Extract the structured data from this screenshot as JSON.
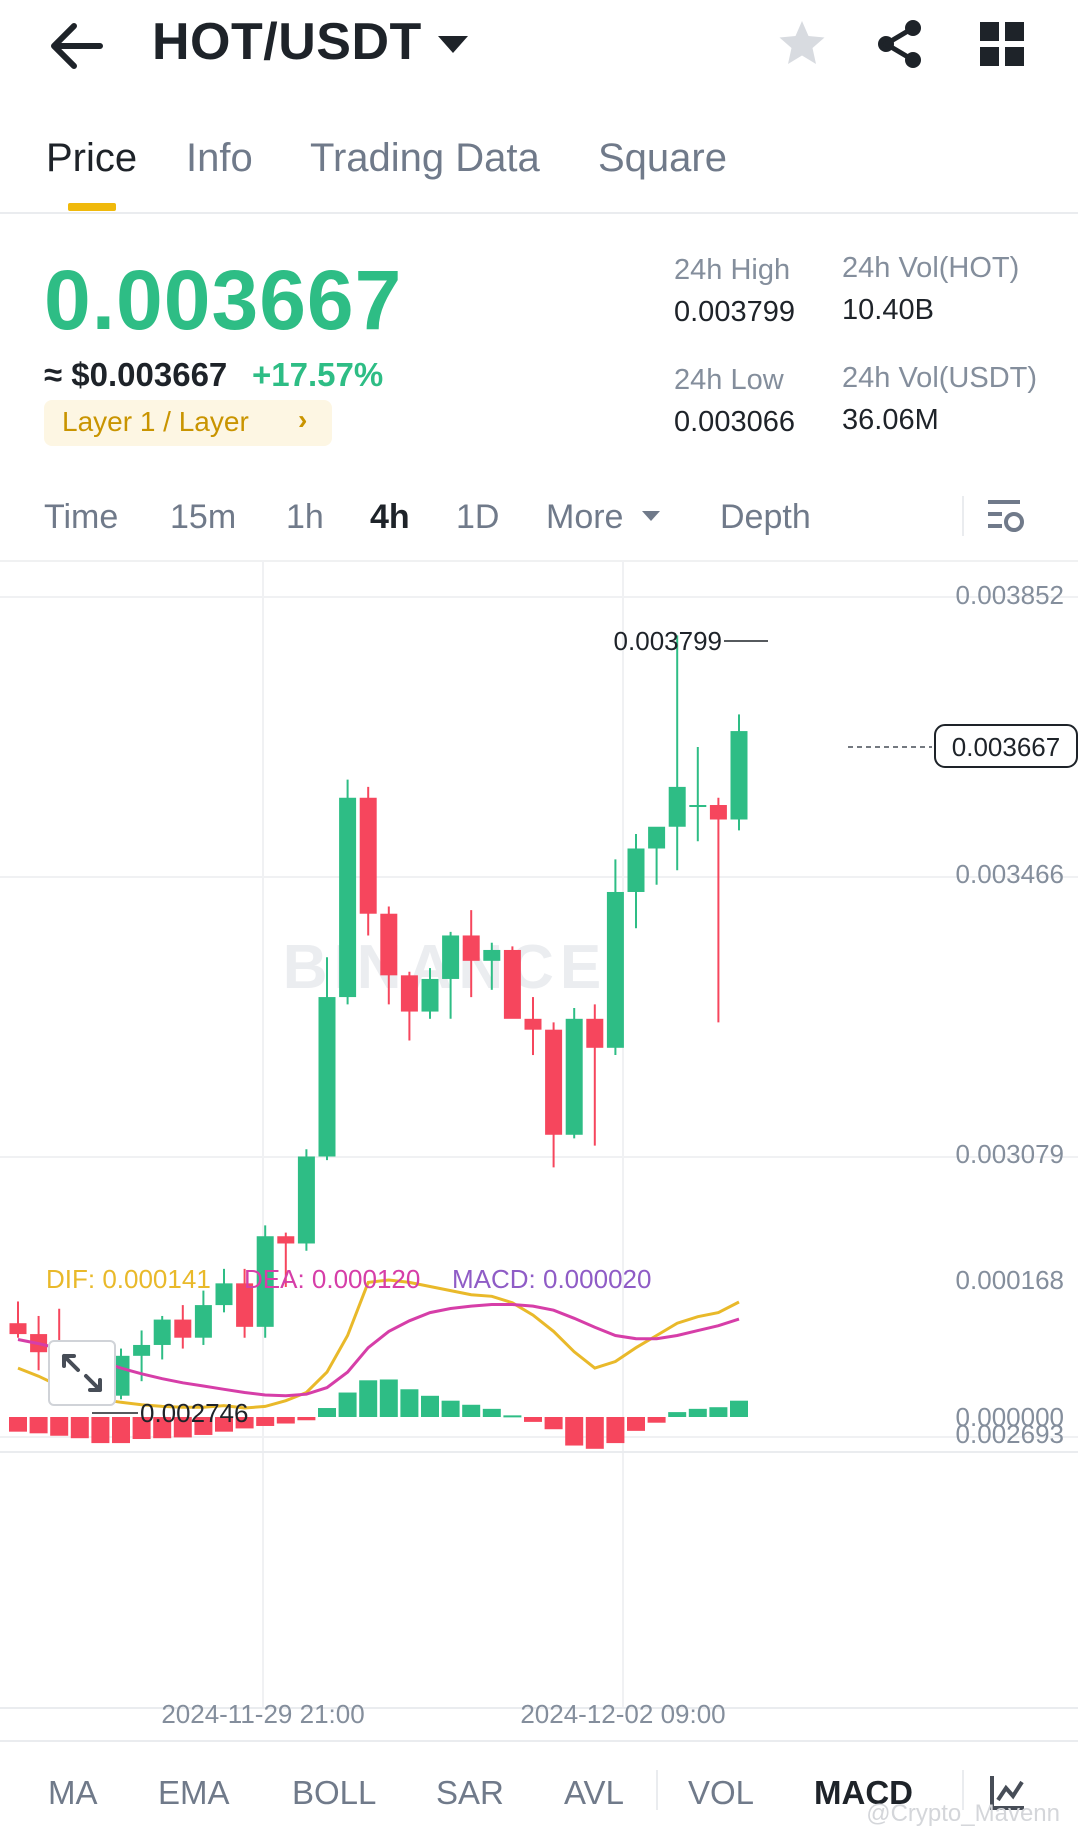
{
  "header": {
    "pair": "HOT/USDT"
  },
  "tabs": [
    "Price",
    "Info",
    "Trading Data",
    "Square"
  ],
  "price": {
    "last": "0.003667",
    "approx": "≈ $0.003667",
    "change": "+17.57%",
    "tag": "Layer 1 / Layer"
  },
  "stats": {
    "high_label": "24h High",
    "high": "0.003799",
    "vol_hot_label": "24h Vol(HOT)",
    "vol_hot": "10.40B",
    "low_label": "24h Low",
    "low": "0.003066",
    "vol_usdt_label": "24h Vol(USDT)",
    "vol_usdt": "36.06M"
  },
  "intervals": [
    "Time",
    "15m",
    "1h",
    "4h",
    "1D",
    "More",
    "Depth"
  ],
  "active_interval": "4h",
  "chart_data": {
    "type": "candlestick",
    "price_ticks": [
      "0.003852",
      "0.003466",
      "0.003079",
      "0.002693"
    ],
    "high_marker": "0.003799",
    "low_marker": "0.002746",
    "last_marker": "0.003667",
    "watermark": "BINANCE",
    "candles": [
      {
        "o": 0.00285,
        "h": 0.00288,
        "l": 0.00283,
        "c": 0.002835
      },
      {
        "o": 0.002835,
        "h": 0.00286,
        "l": 0.002785,
        "c": 0.00281
      },
      {
        "o": 0.00281,
        "h": 0.00287,
        "l": 0.00278,
        "c": 0.00279
      },
      {
        "o": 0.00279,
        "h": 0.00281,
        "l": 0.00276,
        "c": 0.002775
      },
      {
        "o": 0.00276,
        "h": 0.0028,
        "l": 0.002746,
        "c": 0.00275
      },
      {
        "o": 0.00275,
        "h": 0.002815,
        "l": 0.002745,
        "c": 0.002805
      },
      {
        "o": 0.002805,
        "h": 0.00284,
        "l": 0.00277,
        "c": 0.00282
      },
      {
        "o": 0.00282,
        "h": 0.00286,
        "l": 0.0028,
        "c": 0.002855
      },
      {
        "o": 0.002855,
        "h": 0.002875,
        "l": 0.002815,
        "c": 0.00283
      },
      {
        "o": 0.00283,
        "h": 0.002895,
        "l": 0.00282,
        "c": 0.002875
      },
      {
        "o": 0.002875,
        "h": 0.002925,
        "l": 0.002865,
        "c": 0.002905
      },
      {
        "o": 0.002905,
        "h": 0.002925,
        "l": 0.00283,
        "c": 0.002845
      },
      {
        "o": 0.002845,
        "h": 0.002985,
        "l": 0.00283,
        "c": 0.00297
      },
      {
        "o": 0.00297,
        "h": 0.002975,
        "l": 0.0029,
        "c": 0.00296
      },
      {
        "o": 0.00296,
        "h": 0.00309,
        "l": 0.00295,
        "c": 0.00308
      },
      {
        "o": 0.00308,
        "h": 0.003355,
        "l": 0.003075,
        "c": 0.0033
      },
      {
        "o": 0.0033,
        "h": 0.0036,
        "l": 0.00329,
        "c": 0.003575
      },
      {
        "o": 0.003575,
        "h": 0.00359,
        "l": 0.003385,
        "c": 0.003415
      },
      {
        "o": 0.003415,
        "h": 0.003425,
        "l": 0.00329,
        "c": 0.00333
      },
      {
        "o": 0.00333,
        "h": 0.003335,
        "l": 0.00324,
        "c": 0.00328
      },
      {
        "o": 0.00328,
        "h": 0.00334,
        "l": 0.00327,
        "c": 0.003325
      },
      {
        "o": 0.003325,
        "h": 0.00339,
        "l": 0.00327,
        "c": 0.003385
      },
      {
        "o": 0.003385,
        "h": 0.00342,
        "l": 0.0033,
        "c": 0.00335
      },
      {
        "o": 0.00335,
        "h": 0.003375,
        "l": 0.00331,
        "c": 0.003365
      },
      {
        "o": 0.003365,
        "h": 0.00337,
        "l": 0.00328,
        "c": 0.00327
      },
      {
        "o": 0.00327,
        "h": 0.0033,
        "l": 0.00322,
        "c": 0.003255
      },
      {
        "o": 0.003255,
        "h": 0.003265,
        "l": 0.003065,
        "c": 0.00311
      },
      {
        "o": 0.00311,
        "h": 0.003285,
        "l": 0.003105,
        "c": 0.00327
      },
      {
        "o": 0.00327,
        "h": 0.00329,
        "l": 0.003095,
        "c": 0.00323
      },
      {
        "o": 0.00323,
        "h": 0.00349,
        "l": 0.00322,
        "c": 0.003445
      },
      {
        "o": 0.003445,
        "h": 0.003525,
        "l": 0.003395,
        "c": 0.003505
      },
      {
        "o": 0.003505,
        "h": 0.003525,
        "l": 0.003455,
        "c": 0.003535
      },
      {
        "o": 0.003535,
        "h": 0.003799,
        "l": 0.003475,
        "c": 0.00359
      },
      {
        "o": 0.003565,
        "h": 0.003645,
        "l": 0.003515,
        "c": 0.003565
      },
      {
        "o": 0.003565,
        "h": 0.003575,
        "l": 0.003265,
        "c": 0.003545
      },
      {
        "o": 0.003545,
        "h": 0.00369,
        "l": 0.00353,
        "c": 0.003667
      }
    ],
    "macd": {
      "dif_label": "DIF: 0.000141",
      "dea_label": "DEA: 0.000120",
      "macd_label": "MACD: 0.000020",
      "ticks": [
        "0.000168",
        "0.000000"
      ],
      "dif": [
        6e-05,
        5e-05,
        3.8e-05,
        2.8e-05,
        2.2e-05,
        1.8e-05,
        1.5e-05,
        1.3e-05,
        1.2e-05,
        1.2e-05,
        1.4e-05,
        1.1e-05,
        1.3e-05,
        2e-05,
        3e-05,
        5.5e-05,
        0.0001,
        0.000165,
        0.000168,
        0.000165,
        0.00016,
        0.000155,
        0.00015,
        0.000148,
        0.00014,
        0.000125,
        0.000105,
        8e-05,
        6e-05,
        6.8e-05,
        8.5e-05,
        0.0001,
        0.000115,
        0.000123,
        0.000128,
        0.000141
      ],
      "dea": [
        9.5e-05,
        9e-05,
        8.4e-05,
        7.6e-05,
        6.8e-05,
        6e-05,
        5.3e-05,
        4.7e-05,
        4.2e-05,
        3.8e-05,
        3.4e-05,
        3e-05,
        2.7e-05,
        2.6e-05,
        2.8e-05,
        3.6e-05,
        5.5e-05,
        8.5e-05,
        0.000105,
        0.000118,
        0.000128,
        0.000133,
        0.000136,
        0.000138,
        0.000138,
        0.000136,
        0.000131,
        0.000121,
        0.00011,
        0.0001,
        9.6e-05,
        9.6e-05,
        0.0001,
        0.000106,
        0.000112,
        0.00012
      ],
      "hist": [
        -1.8e-05,
        -2e-05,
        -2.3e-05,
        -2.6e-05,
        -3.2e-05,
        -3.2e-05,
        -2.7e-05,
        -2.6e-05,
        -2.5e-05,
        -2.2e-05,
        -1.8e-05,
        -1.4e-05,
        -1.1e-05,
        -8e-06,
        -4e-06,
        1.1e-05,
        3e-05,
        4.5e-05,
        4.6e-05,
        3.4e-05,
        2.6e-05,
        2e-05,
        1.5e-05,
        1e-05,
        2e-06,
        -6e-06,
        -1.5e-05,
        -3.5e-05,
        -3.9e-05,
        -3.2e-05,
        -1.7e-05,
        -7e-06,
        6e-06,
        1e-05,
        1.2e-05,
        2e-05
      ]
    },
    "x_ticks": [
      "2024-11-29 21:00",
      "2024-12-02 09:00"
    ]
  },
  "indicators": [
    "MA",
    "EMA",
    "BOLL",
    "SAR",
    "AVL",
    "VOL",
    "MACD"
  ],
  "active_indicator": "MACD",
  "watermark_text": "@Crypto_Mavenn",
  "colors": {
    "up": "#2ebd85",
    "down": "#f6465d",
    "dif": "#e9b92a",
    "dea": "#d63ea8",
    "macd": "#8f5cc6",
    "accent": "#f0b90b"
  }
}
